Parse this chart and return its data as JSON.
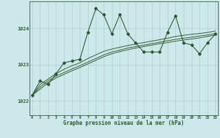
{
  "title": "Graphe pression niveau de la mer (hPa)",
  "background_color": "#cce8ea",
  "plot_bg_color": "#cce8ea",
  "grid_color": "#aacccc",
  "line_color": "#2d5a2d",
  "marker_color": "#2d5a2d",
  "x_ticks": [
    0,
    1,
    2,
    3,
    4,
    5,
    6,
    7,
    8,
    9,
    10,
    11,
    12,
    13,
    14,
    15,
    16,
    17,
    18,
    19,
    20,
    21,
    22,
    23
  ],
  "y_ticks": [
    1022,
    1023,
    1024
  ],
  "ylim": [
    1021.6,
    1024.75
  ],
  "xlim": [
    -0.3,
    23.3
  ],
  "series1": [
    1022.15,
    1022.55,
    1022.45,
    1022.75,
    1023.05,
    1023.1,
    1023.15,
    1023.9,
    1024.55,
    1024.38,
    1023.85,
    1024.38,
    1023.85,
    1023.6,
    1023.35,
    1023.35,
    1023.35,
    1023.9,
    1024.35,
    1023.6,
    1023.55,
    1023.3,
    1023.6,
    1023.85
  ],
  "series2": [
    1022.15,
    1022.45,
    1022.6,
    1022.75,
    1022.87,
    1022.97,
    1023.05,
    1023.17,
    1023.27,
    1023.37,
    1023.43,
    1023.48,
    1023.53,
    1023.57,
    1023.61,
    1023.65,
    1023.69,
    1023.73,
    1023.78,
    1023.81,
    1023.84,
    1023.86,
    1023.89,
    1023.93
  ],
  "series3": [
    1022.15,
    1022.38,
    1022.55,
    1022.68,
    1022.78,
    1022.88,
    1022.97,
    1023.07,
    1023.17,
    1023.27,
    1023.35,
    1023.4,
    1023.46,
    1023.5,
    1023.54,
    1023.58,
    1023.62,
    1023.66,
    1023.7,
    1023.73,
    1023.76,
    1023.79,
    1023.82,
    1023.86
  ],
  "series4": [
    1022.15,
    1022.32,
    1022.5,
    1022.63,
    1022.73,
    1022.83,
    1022.92,
    1023.02,
    1023.12,
    1023.22,
    1023.3,
    1023.36,
    1023.41,
    1023.46,
    1023.5,
    1023.54,
    1023.58,
    1023.61,
    1023.65,
    1023.68,
    1023.71,
    1023.74,
    1023.78,
    1023.82
  ]
}
